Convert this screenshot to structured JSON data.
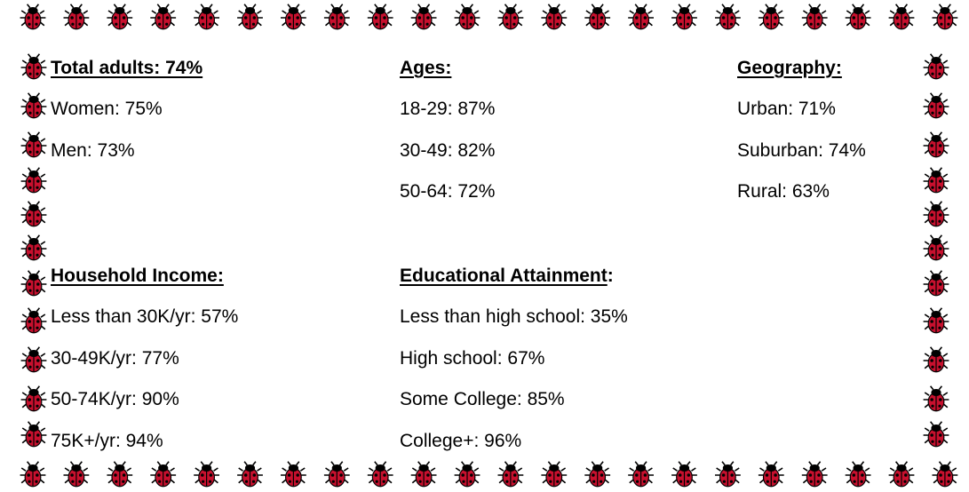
{
  "sections": [
    {
      "heading": "Total adults: 74%",
      "items": [
        "Women: 75%",
        "Men: 73%"
      ]
    },
    {
      "heading": "Ages:",
      "items": [
        "18-29: 87%",
        "30-49: 82%",
        "50-64: 72%"
      ]
    },
    {
      "heading": "Geography:",
      "items": [
        "Urban: 71%",
        "Suburban: 74%",
        "Rural: 63%"
      ]
    },
    {
      "heading": "Household Income:",
      "items": [
        "Less than 30K/yr: 57%",
        "30-49K/yr: 77%",
        "50-74K/yr: 90%",
        "75K+/yr: 94%"
      ]
    },
    {
      "heading": "Educational Attainment",
      "heading_colon": ":",
      "items": [
        "Less than high school: 35%",
        "High school: 67%",
        "Some College: 85%",
        "College+: 96%"
      ]
    }
  ]
}
